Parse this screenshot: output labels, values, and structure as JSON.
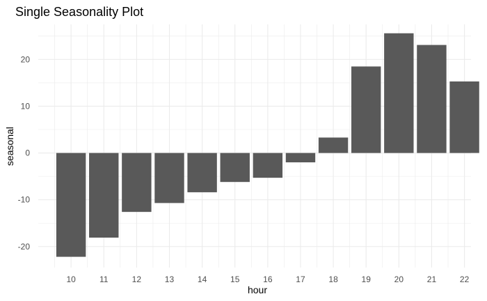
{
  "chart_data": {
    "type": "bar",
    "title": "Single Seasonality Plot",
    "xlabel": "hour",
    "ylabel": "seasonal",
    "categories": [
      "10",
      "11",
      "12",
      "13",
      "14",
      "15",
      "16",
      "17",
      "18",
      "19",
      "20",
      "21",
      "22"
    ],
    "values": [
      -22.2,
      -18.1,
      -12.6,
      -10.7,
      -8.4,
      -6.2,
      -5.3,
      -2.0,
      3.3,
      18.5,
      25.6,
      23.1,
      15.3
    ],
    "ylim": [
      -24.5,
      27.5
    ],
    "yticks": [
      -20,
      -10,
      0,
      10,
      20
    ],
    "grid": true,
    "colors": {
      "bar": "#595959",
      "grid": "#ebebeb",
      "background": "#ffffff"
    }
  }
}
